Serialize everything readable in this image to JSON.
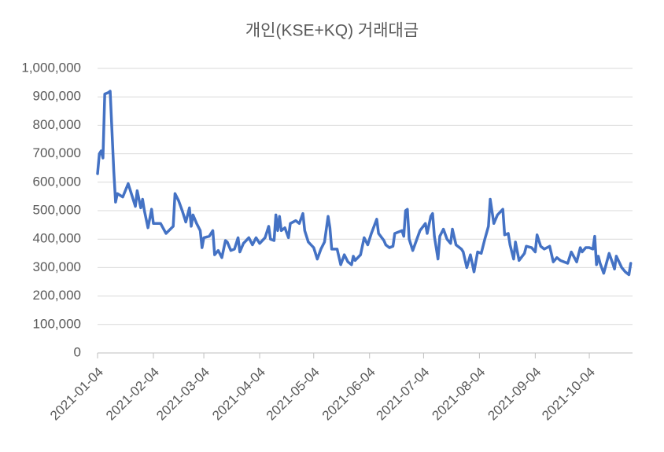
{
  "chart_data": {
    "type": "line",
    "title": "개인(KSE+KQ) 거래대금",
    "x": [
      "2021-01-04",
      "2021-01-05",
      "2021-01-06",
      "2021-01-07",
      "2021-01-08",
      "2021-01-10",
      "2021-01-11",
      "2021-01-13",
      "2021-01-14",
      "2021-01-15",
      "2021-01-18",
      "2021-01-21",
      "2021-01-23",
      "2021-01-25",
      "2021-01-26",
      "2021-01-28",
      "2021-01-29",
      "2021-01-30",
      "2021-02-01",
      "2021-02-03",
      "2021-02-04",
      "2021-02-08",
      "2021-02-11",
      "2021-02-15",
      "2021-02-16",
      "2021-02-18",
      "2021-02-20",
      "2021-02-22",
      "2021-02-24",
      "2021-02-25",
      "2021-02-26",
      "2021-02-28",
      "2021-03-02",
      "2021-03-03",
      "2021-03-04",
      "2021-03-07",
      "2021-03-09",
      "2021-03-10",
      "2021-03-12",
      "2021-03-14",
      "2021-03-16",
      "2021-03-17",
      "2021-03-19",
      "2021-03-21",
      "2021-03-23",
      "2021-03-24",
      "2021-03-26",
      "2021-03-29",
      "2021-03-31",
      "2021-04-02",
      "2021-04-04",
      "2021-04-07",
      "2021-04-09",
      "2021-04-10",
      "2021-04-12",
      "2021-04-13",
      "2021-04-14",
      "2021-04-15",
      "2021-04-16",
      "2021-04-18",
      "2021-04-20",
      "2021-04-21",
      "2021-04-24",
      "2021-04-26",
      "2021-04-28",
      "2021-04-29",
      "2021-05-01",
      "2021-05-04",
      "2021-05-06",
      "2021-05-08",
      "2021-05-10",
      "2021-05-12",
      "2021-05-13",
      "2021-05-14",
      "2021-05-17",
      "2021-05-19",
      "2021-05-21",
      "2021-05-23",
      "2021-05-25",
      "2021-05-26",
      "2021-05-27",
      "2021-05-30",
      "2021-06-01",
      "2021-06-03",
      "2021-06-05",
      "2021-06-08",
      "2021-06-09",
      "2021-06-12",
      "2021-06-13",
      "2021-06-15",
      "2021-06-17",
      "2021-06-18",
      "2021-06-22",
      "2021-06-23",
      "2021-06-24",
      "2021-06-25",
      "2021-06-26",
      "2021-06-28",
      "2021-06-30",
      "2021-07-02",
      "2021-07-05",
      "2021-07-06",
      "2021-07-08",
      "2021-07-09",
      "2021-07-10",
      "2021-07-12",
      "2021-07-13",
      "2021-07-15",
      "2021-07-17",
      "2021-07-19",
      "2021-07-20",
      "2021-07-22",
      "2021-07-25",
      "2021-07-26",
      "2021-07-28",
      "2021-07-30",
      "2021-08-01",
      "2021-08-03",
      "2021-08-05",
      "2021-08-07",
      "2021-08-09",
      "2021-08-10",
      "2021-08-12",
      "2021-08-14",
      "2021-08-17",
      "2021-08-18",
      "2021-08-20",
      "2021-08-21",
      "2021-08-23",
      "2021-08-24",
      "2021-08-26",
      "2021-08-29",
      "2021-08-30",
      "2021-09-02",
      "2021-09-04",
      "2021-09-05",
      "2021-09-07",
      "2021-09-09",
      "2021-09-12",
      "2021-09-14",
      "2021-09-16",
      "2021-09-18",
      "2021-09-22",
      "2021-09-24",
      "2021-09-27",
      "2021-09-29",
      "2021-09-30",
      "2021-10-02",
      "2021-10-04",
      "2021-10-06",
      "2021-10-07",
      "2021-10-08",
      "2021-10-09",
      "2021-10-10",
      "2021-10-12",
      "2021-10-15",
      "2021-10-17",
      "2021-10-18",
      "2021-10-19",
      "2021-10-22",
      "2021-10-24",
      "2021-10-26",
      "2021-10-27"
    ],
    "series": [
      {
        "color": "#4472c4",
        "values": [
          630000,
          700000,
          710000,
          685000,
          910000,
          915000,
          920000,
          640000,
          530000,
          560000,
          548000,
          595000,
          555000,
          515000,
          570000,
          510000,
          540000,
          500000,
          440000,
          505000,
          455000,
          455000,
          420000,
          445000,
          560000,
          535000,
          500000,
          460000,
          510000,
          445000,
          485000,
          455000,
          430000,
          370000,
          405000,
          410000,
          430000,
          345000,
          360000,
          335000,
          395000,
          390000,
          360000,
          365000,
          405000,
          355000,
          385000,
          405000,
          380000,
          405000,
          385000,
          405000,
          445000,
          400000,
          395000,
          485000,
          430000,
          480000,
          430000,
          440000,
          405000,
          455000,
          465000,
          455000,
          490000,
          430000,
          390000,
          370000,
          330000,
          365000,
          390000,
          480000,
          440000,
          365000,
          365000,
          310000,
          345000,
          320000,
          310000,
          340000,
          325000,
          345000,
          405000,
          380000,
          420000,
          470000,
          420000,
          395000,
          380000,
          370000,
          375000,
          420000,
          430000,
          410000,
          500000,
          505000,
          400000,
          360000,
          395000,
          430000,
          455000,
          420000,
          480000,
          490000,
          410000,
          330000,
          410000,
          435000,
          400000,
          385000,
          435000,
          380000,
          365000,
          355000,
          300000,
          345000,
          285000,
          355000,
          350000,
          400000,
          445000,
          540000,
          455000,
          485000,
          505000,
          415000,
          420000,
          380000,
          330000,
          390000,
          325000,
          350000,
          375000,
          370000,
          355000,
          415000,
          375000,
          365000,
          375000,
          320000,
          335000,
          325000,
          315000,
          355000,
          320000,
          370000,
          355000,
          370000,
          370000,
          365000,
          410000,
          310000,
          340000,
          315000,
          280000,
          350000,
          315000,
          295000,
          340000,
          300000,
          285000,
          275000,
          315000
        ]
      }
    ],
    "xlim": [
      "2021-01-04",
      "2021-10-28"
    ],
    "xticks": [
      "2021-01-04",
      "2021-02-04",
      "2021-03-04",
      "2021-04-04",
      "2021-05-04",
      "2021-06-04",
      "2021-07-04",
      "2021-08-04",
      "2021-09-04",
      "2021-10-04"
    ],
    "ylim": [
      0,
      1000000
    ],
    "yticks": [
      0,
      {
        "value": 100000,
        "label": "100,000"
      },
      {
        "value": 200000,
        "label": "200,000"
      },
      {
        "value": 300000,
        "label": "300,000"
      },
      {
        "value": 400000,
        "label": "400,000"
      },
      {
        "value": 500000,
        "label": "500,000"
      },
      {
        "value": 600000,
        "label": "600,000"
      },
      {
        "value": 700000,
        "label": "700,000"
      },
      {
        "value": 800000,
        "label": "800,000"
      },
      {
        "value": 900000,
        "label": "900,000"
      },
      {
        "value": 1000000,
        "label": "1,000,000"
      }
    ],
    "grid": true
  }
}
